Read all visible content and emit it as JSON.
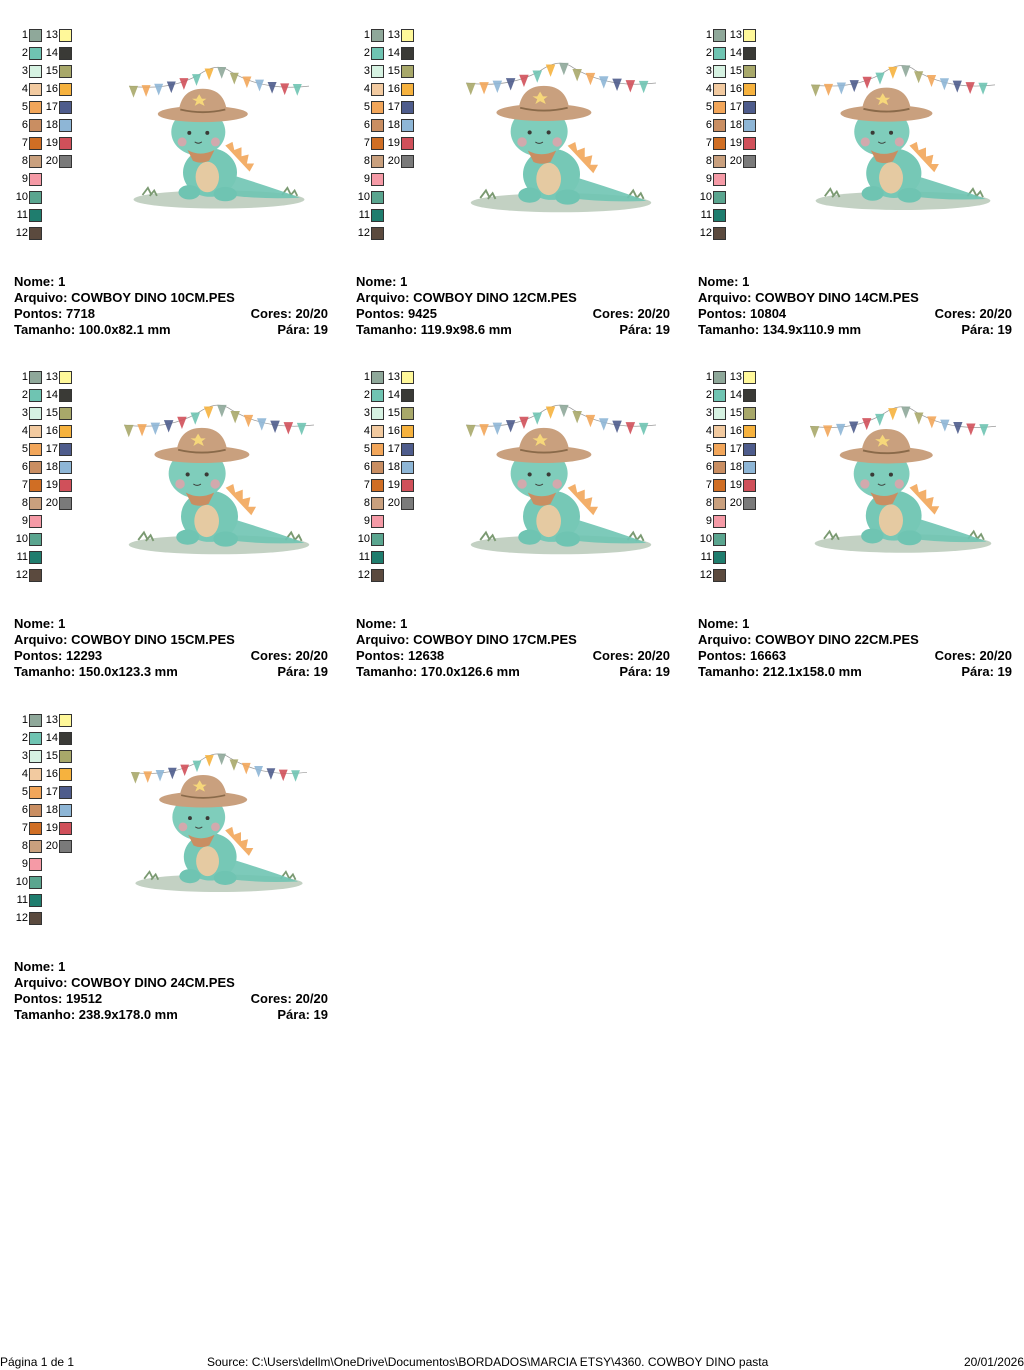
{
  "palette": {
    "left": [
      {
        "n": "1",
        "color": "#8fa89a"
      },
      {
        "n": "2",
        "color": "#6fc4b2"
      },
      {
        "n": "3",
        "color": "#d6f2e2"
      },
      {
        "n": "4",
        "color": "#f2caa0"
      },
      {
        "n": "5",
        "color": "#f2a65a"
      },
      {
        "n": "6",
        "color": "#c98e62"
      },
      {
        "n": "7",
        "color": "#d06e24"
      },
      {
        "n": "8",
        "color": "#c9a07e"
      },
      {
        "n": "9",
        "color": "#f59aa6"
      },
      {
        "n": "10",
        "color": "#5aa58f"
      },
      {
        "n": "11",
        "color": "#1f7d6e"
      },
      {
        "n": "12",
        "color": "#5b4a3e"
      }
    ],
    "right": [
      {
        "n": "13",
        "color": "#fff89a"
      },
      {
        "n": "14",
        "color": "#3a3a36"
      },
      {
        "n": "15",
        "color": "#a8a86a"
      },
      {
        "n": "16",
        "color": "#f6b23e"
      },
      {
        "n": "17",
        "color": "#4e5c8c"
      },
      {
        "n": "18",
        "color": "#8eb6d6"
      },
      {
        "n": "19",
        "color": "#d0505a"
      },
      {
        "n": "20",
        "color": "#7a7a7a"
      }
    ]
  },
  "labels": {
    "nome": "Nome:",
    "arquivo": "Arquivo:",
    "pontos": "Pontos:",
    "cores": "Cores:",
    "tamanho": "Tamanho:",
    "para": "Pára:"
  },
  "designs": [
    {
      "nome": "1",
      "arquivo": "COWBOY DINO 10CM.PES",
      "pontos": "7718",
      "cores": "20/20",
      "tamanho": "100.0x82.1 mm",
      "para": "19"
    },
    {
      "nome": "1",
      "arquivo": "COWBOY DINO 12CM.PES",
      "pontos": "9425",
      "cores": "20/20",
      "tamanho": "119.9x98.6 mm",
      "para": "19"
    },
    {
      "nome": "1",
      "arquivo": "COWBOY DINO 14CM.PES",
      "pontos": "10804",
      "cores": "20/20",
      "tamanho": "134.9x110.9 mm",
      "para": "19"
    },
    {
      "nome": "1",
      "arquivo": "COWBOY DINO 15CM.PES",
      "pontos": "12293",
      "cores": "20/20",
      "tamanho": "150.0x123.3 mm",
      "para": "19"
    },
    {
      "nome": "1",
      "arquivo": "COWBOY DINO 17CM.PES",
      "pontos": "12638",
      "cores": "20/20",
      "tamanho": "170.0x126.6 mm",
      "para": "19"
    },
    {
      "nome": "1",
      "arquivo": "COWBOY DINO 22CM.PES",
      "pontos": "16663",
      "cores": "20/20",
      "tamanho": "212.1x158.0 mm",
      "para": "19"
    },
    {
      "nome": "1",
      "arquivo": "COWBOY DINO 24CM.PES",
      "pontos": "19512",
      "cores": "20/20",
      "tamanho": "238.9x178.0 mm",
      "para": "19"
    }
  ],
  "footer": {
    "page": "Página 1 de 1",
    "source": "Source: C:\\Users\\dellm\\OneDrive\\Documentos\\BORDADOS\\MARCIA ETSY\\4360. COWBOY DINO pasta",
    "date": "20/01/2026"
  }
}
